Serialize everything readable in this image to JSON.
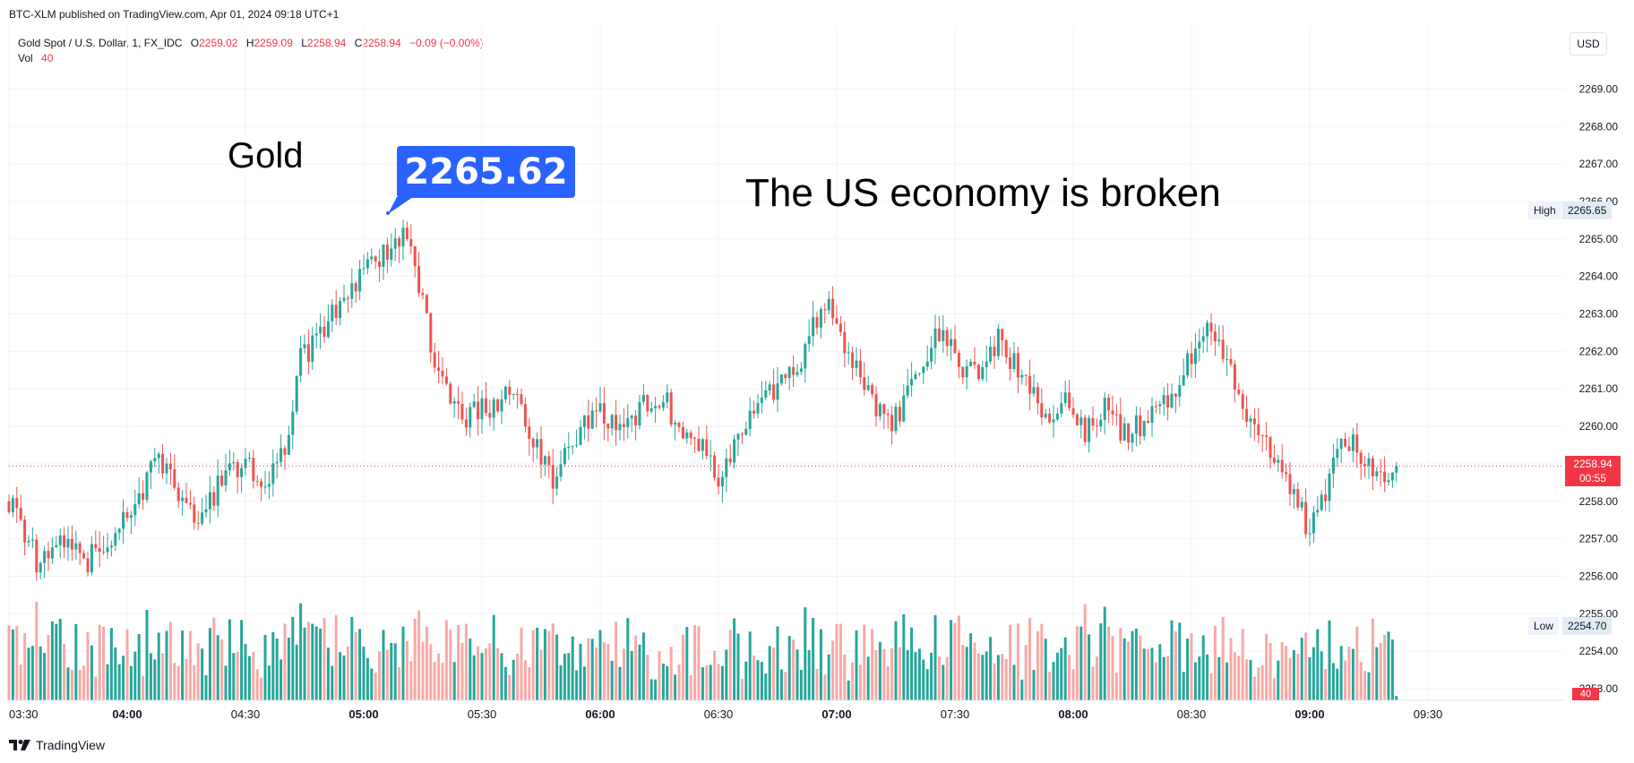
{
  "header": {
    "published": "BTC-XLM published on TradingView.com, Apr 01, 2024 09:18 UTC+1"
  },
  "legend": {
    "symbol": "Gold Spot / U.S. Dollar, 1, FX_IDC",
    "o_label": "O",
    "o_value": "2259.02",
    "h_label": "H",
    "h_value": "2259.09",
    "l_label": "L",
    "l_value": "2258.94",
    "c_label": "C",
    "c_value": "2258.94",
    "change": "−0.09 (−0.00%)",
    "vol_label": "Vol",
    "vol_value": "40"
  },
  "currency_button": "USD",
  "annotations": {
    "gold": "Gold",
    "headline": "The US economy is broken",
    "callout": "2265.62"
  },
  "badges": {
    "high_label": "High",
    "high_value": "2265.65",
    "low_label": "Low",
    "low_value": "2254.70",
    "last_price": "2258.94",
    "countdown": "00:55",
    "last_volume": "40"
  },
  "footer": {
    "brand": "TradingView"
  },
  "colors": {
    "up": "#26a69a",
    "down": "#ef5350",
    "up_vol": "#26a69a",
    "down_vol": "#f7a9a7",
    "accent": "#2962ff"
  },
  "chart_data": {
    "type": "candlestick",
    "ylim": [
      2252.8,
      2270.0
    ],
    "y_ticks": [
      "2253.00",
      "2254.00",
      "2255.00",
      "2256.00",
      "2257.00",
      "2258.00",
      "2259.00",
      "2260.00",
      "2261.00",
      "2262.00",
      "2263.00",
      "2264.00",
      "2265.00",
      "2266.00",
      "2267.00",
      "2268.00",
      "2269.00"
    ],
    "x_ticks": [
      "03:30",
      "04:00",
      "04:30",
      "05:00",
      "05:30",
      "06:00",
      "06:30",
      "07:00",
      "07:30",
      "08:00",
      "08:30",
      "09:00",
      "09:30"
    ],
    "x_ticks_bold": [
      "04:00",
      "05:00",
      "06:00",
      "07:00",
      "08:00",
      "09:00"
    ],
    "session_start": "03:30",
    "bar_minutes": 1,
    "last_price": 2258.94,
    "callout_price": 2265.62,
    "close_path": [
      [
        0,
        2258.0
      ],
      [
        8,
        2256.2
      ],
      [
        14,
        2257.0
      ],
      [
        20,
        2256.4
      ],
      [
        28,
        2257.4
      ],
      [
        34,
        2258.3
      ],
      [
        38,
        2259.3
      ],
      [
        44,
        2257.9
      ],
      [
        48,
        2257.3
      ],
      [
        54,
        2258.6
      ],
      [
        60,
        2259.0
      ],
      [
        66,
        2258.5
      ],
      [
        70,
        2259.4
      ],
      [
        74,
        2261.8
      ],
      [
        80,
        2262.6
      ],
      [
        86,
        2263.6
      ],
      [
        91,
        2264.3
      ],
      [
        96,
        2264.6
      ],
      [
        101,
        2265.3
      ],
      [
        106,
        2262.7
      ],
      [
        110,
        2261.1
      ],
      [
        116,
        2260.3
      ],
      [
        122,
        2260.5
      ],
      [
        128,
        2260.9
      ],
      [
        134,
        2259.5
      ],
      [
        138,
        2258.4
      ],
      [
        143,
        2259.7
      ],
      [
        150,
        2260.3
      ],
      [
        156,
        2259.7
      ],
      [
        160,
        2260.5
      ],
      [
        166,
        2260.8
      ],
      [
        170,
        2259.9
      ],
      [
        176,
        2259.4
      ],
      [
        181,
        2258.5
      ],
      [
        186,
        2260.1
      ],
      [
        192,
        2260.9
      ],
      [
        199,
        2261.3
      ],
      [
        204,
        2262.7
      ],
      [
        208,
        2263.2
      ],
      [
        212,
        2262.2
      ],
      [
        218,
        2260.9
      ],
      [
        224,
        2260.0
      ],
      [
        230,
        2261.3
      ],
      [
        236,
        2262.5
      ],
      [
        241,
        2261.7
      ],
      [
        246,
        2261.4
      ],
      [
        251,
        2262.3
      ],
      [
        258,
        2261.3
      ],
      [
        263,
        2260.1
      ],
      [
        268,
        2260.8
      ],
      [
        273,
        2259.9
      ],
      [
        278,
        2260.5
      ],
      [
        283,
        2259.8
      ],
      [
        289,
        2260.2
      ],
      [
        294,
        2260.6
      ],
      [
        300,
        2262.0
      ],
      [
        304,
        2262.8
      ],
      [
        308,
        2262.0
      ],
      [
        314,
        2260.3
      ],
      [
        320,
        2259.4
      ],
      [
        326,
        2258.1
      ],
      [
        330,
        2257.2
      ],
      [
        334,
        2258.3
      ],
      [
        338,
        2259.9
      ],
      [
        343,
        2259.2
      ],
      [
        348,
        2258.5
      ],
      [
        352,
        2258.9
      ]
    ],
    "volume_max": 85
  }
}
